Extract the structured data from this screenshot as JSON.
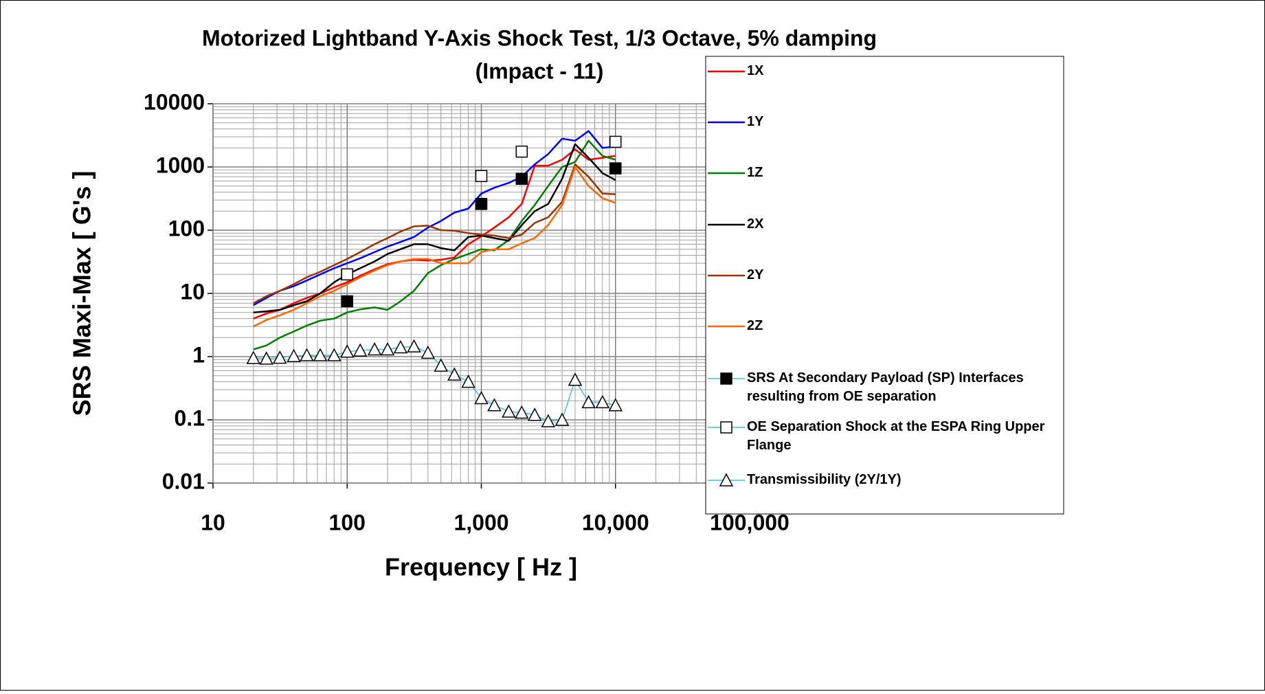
{
  "chart_data": {
    "type": "line",
    "title": [
      "Motorized Lightband Y-Axis Shock Test, 1/3 Octave, 5% damping",
      "(Impact - 11)"
    ],
    "xlabel": "Frequency [ Hz ]",
    "ylabel": "SRS Maxi-Max [ G's ]",
    "x": [
      20,
      25,
      31.5,
      40,
      50,
      63,
      80,
      100,
      125,
      160,
      200,
      250,
      315,
      400,
      500,
      630,
      800,
      1000,
      1250,
      1600,
      2000,
      2500,
      3150,
      4000,
      5000,
      6300,
      8000,
      10000
    ],
    "xscale": "log",
    "yscale": "log",
    "grid": true,
    "minor_grid": true,
    "xlim": [
      10,
      100000
    ],
    "xticks": [
      10,
      100,
      {
        "value": 1000,
        "label": "1,000"
      },
      {
        "value": 10000,
        "label": "10,000"
      },
      {
        "value": 100000,
        "label": "100,000"
      }
    ],
    "ylim": [
      0.01,
      10000
    ],
    "yticks": [
      0.01,
      0.1,
      1,
      10,
      100,
      1000,
      10000
    ],
    "legend": "right",
    "series": [
      {
        "name": "1X",
        "color": "#ff0000",
        "values": [
          4,
          4.8,
          5.5,
          7,
          8.5,
          10,
          12.5,
          15,
          19,
          24,
          29,
          32,
          34,
          33,
          34,
          37,
          60,
          80,
          110,
          160,
          260,
          1050,
          1050,
          1300,
          1900,
          1300,
          1400,
          1500
        ]
      },
      {
        "name": "1Y",
        "color": "#0000ff",
        "values": [
          6.5,
          8.5,
          11,
          13,
          16,
          20,
          25,
          30,
          36,
          45,
          55,
          65,
          78,
          110,
          140,
          190,
          220,
          380,
          470,
          560,
          700,
          1100,
          1600,
          2800,
          2600,
          3700,
          2000,
          2100
        ]
      },
      {
        "name": "1Z",
        "color": "#008000",
        "values": [
          1.3,
          1.5,
          2,
          2.5,
          3.1,
          3.7,
          4,
          5,
          5.6,
          6,
          5.5,
          7.5,
          11,
          21,
          28,
          35,
          42,
          50,
          48,
          70,
          140,
          250,
          500,
          1000,
          1200,
          2600,
          1500,
          1300
        ]
      },
      {
        "name": "2X",
        "color": "#000000",
        "values": [
          5,
          5.2,
          5.5,
          6.5,
          7.5,
          10,
          15,
          20,
          25,
          32,
          42,
          50,
          60,
          60,
          52,
          48,
          78,
          82,
          75,
          68,
          120,
          200,
          260,
          650,
          2300,
          1400,
          800,
          620
        ]
      },
      {
        "name": "2Y",
        "color": "#993300",
        "values": [
          7,
          9,
          11,
          14,
          18,
          22,
          28,
          35,
          45,
          60,
          75,
          95,
          115,
          118,
          100,
          98,
          90,
          85,
          82,
          75,
          85,
          130,
          160,
          280,
          1100,
          700,
          380,
          370
        ]
      },
      {
        "name": "2Z",
        "color": "#ff6600",
        "values": [
          3,
          3.8,
          4.5,
          5.5,
          7,
          9,
          11,
          14,
          18,
          23,
          28,
          32,
          35,
          35,
          30,
          30,
          30,
          45,
          50,
          50,
          62,
          75,
          120,
          250,
          1000,
          500,
          320,
          270
        ]
      },
      {
        "name": "SRS At Secondary Payload (SP) Interfaces resulting from OE separation",
        "color": "#000000",
        "marker": "square-filled",
        "line": false,
        "x": [
          100,
          1000,
          2000,
          10000
        ],
        "values": [
          7.5,
          260,
          650,
          950
        ]
      },
      {
        "name": "OE Separation Shock at the ESPA Ring Upper Flange",
        "color": "#000000",
        "marker": "square-open",
        "line": false,
        "x": [
          100,
          1000,
          2000,
          10000
        ],
        "values": [
          20,
          720,
          1750,
          2500
        ]
      },
      {
        "name": "Transmissibility (2Y/1Y)",
        "color": "#33cccc",
        "marker": "triangle-open",
        "values": [
          0.95,
          0.93,
          0.96,
          1.02,
          1.05,
          1.05,
          1.05,
          1.2,
          1.25,
          1.3,
          1.3,
          1.4,
          1.45,
          1.15,
          0.72,
          0.52,
          0.4,
          0.22,
          0.17,
          0.135,
          0.13,
          0.12,
          0.095,
          0.1,
          0.43,
          0.19,
          0.19,
          0.17
        ]
      }
    ]
  }
}
